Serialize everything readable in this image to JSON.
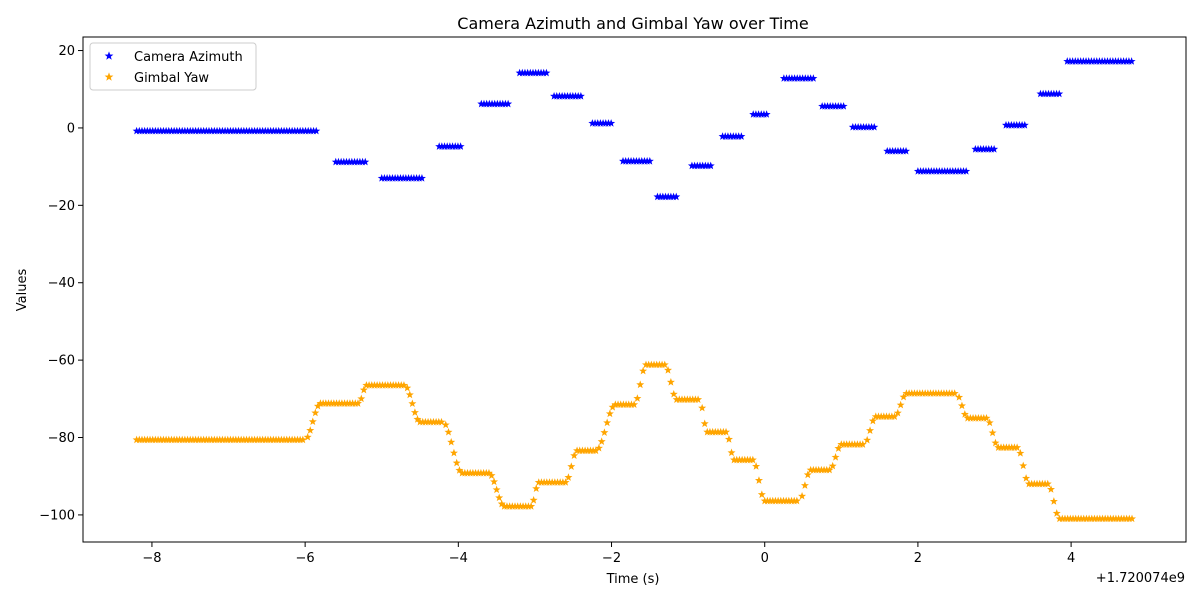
{
  "chart_data": {
    "type": "scatter",
    "title": "Camera Azimuth and Gimbal Yaw over Time",
    "xlabel": "Time (s)",
    "ylabel": "Values",
    "x_offset_label": "+1.720074e9",
    "xlim": [
      -8.9,
      5.5
    ],
    "ylim": [
      -107,
      23.5
    ],
    "x_ticks": [
      -8,
      -6,
      -4,
      -2,
      0,
      2,
      4
    ],
    "y_ticks": [
      20,
      0,
      -20,
      -40,
      -60,
      -80,
      -100
    ],
    "marker": "star",
    "legend": {
      "position": "top-left"
    },
    "series": [
      {
        "name": "Camera Azimuth",
        "color": "#0000ff",
        "segments": [
          {
            "x": [
              -8.2,
              -5.85
            ],
            "y": -0.8
          },
          {
            "x": [
              -5.6,
              -5.2
            ],
            "y": -8.8
          },
          {
            "x": [
              -5.0,
              -4.45
            ],
            "y": -13.0
          },
          {
            "x": [
              -4.25,
              -3.95
            ],
            "y": -4.8
          },
          {
            "x": [
              -3.7,
              -3.35
            ],
            "y": 6.2
          },
          {
            "x": [
              -3.2,
              -2.85
            ],
            "y": 14.2
          },
          {
            "x": [
              -2.75,
              -2.4
            ],
            "y": 8.2
          },
          {
            "x": [
              -2.25,
              -2.0
            ],
            "y": 1.2
          },
          {
            "x": [
              -1.85,
              -1.5
            ],
            "y": -8.6
          },
          {
            "x": [
              -1.4,
              -1.15
            ],
            "y": -17.8
          },
          {
            "x": [
              -0.95,
              -0.7
            ],
            "y": -9.8
          },
          {
            "x": [
              -0.55,
              -0.3
            ],
            "y": -2.2
          },
          {
            "x": [
              -0.15,
              0.05
            ],
            "y": 3.5
          },
          {
            "x": [
              0.25,
              0.65
            ],
            "y": 12.8
          },
          {
            "x": [
              0.75,
              1.05
            ],
            "y": 5.6
          },
          {
            "x": [
              1.15,
              1.45
            ],
            "y": 0.2
          },
          {
            "x": [
              1.6,
              1.85
            ],
            "y": -6.0
          },
          {
            "x": [
              2.0,
              2.65
            ],
            "y": -11.2
          },
          {
            "x": [
              2.75,
              3.0
            ],
            "y": -5.5
          },
          {
            "x": [
              3.15,
              3.4
            ],
            "y": 0.7
          },
          {
            "x": [
              3.6,
              3.85
            ],
            "y": 8.8
          },
          {
            "x": [
              3.95,
              4.8
            ],
            "y": 17.2
          }
        ]
      },
      {
        "name": "Gimbal Yaw",
        "color": "#ffa500",
        "segments": [
          {
            "x": [
              -8.2,
              -6.0
            ],
            "y": -80.6
          },
          {
            "x": [
              -5.8,
              -5.3
            ],
            "y": -71.2
          },
          {
            "x": [
              -5.2,
              -4.7
            ],
            "y": -66.5
          },
          {
            "x": [
              -4.5,
              -4.2
            ],
            "y": -76.0
          },
          {
            "x": [
              -3.95,
              -3.6
            ],
            "y": -89.2
          },
          {
            "x": [
              -3.4,
              -3.05
            ],
            "y": -97.8
          },
          {
            "x": [
              -2.95,
              -2.6
            ],
            "y": -91.6
          },
          {
            "x": [
              -2.45,
              -2.2
            ],
            "y": -83.4
          },
          {
            "x": [
              -1.95,
              -1.7
            ],
            "y": -71.5
          },
          {
            "x": [
              -1.55,
              -1.3
            ],
            "y": -61.2
          },
          {
            "x": [
              -1.15,
              -0.85
            ],
            "y": -70.2
          },
          {
            "x": [
              -0.75,
              -0.5
            ],
            "y": -78.6
          },
          {
            "x": [
              -0.4,
              -0.15
            ],
            "y": -85.8
          },
          {
            "x": [
              0.0,
              0.45
            ],
            "y": -96.4
          },
          {
            "x": [
              0.6,
              0.85
            ],
            "y": -88.4
          },
          {
            "x": [
              1.0,
              1.3
            ],
            "y": -81.8
          },
          {
            "x": [
              1.45,
              1.7
            ],
            "y": -74.6
          },
          {
            "x": [
              1.85,
              2.5
            ],
            "y": -68.6
          },
          {
            "x": [
              2.65,
              2.9
            ],
            "y": -75.0
          },
          {
            "x": [
              3.05,
              3.3
            ],
            "y": -82.6
          },
          {
            "x": [
              3.45,
              3.7
            ],
            "y": -92.0
          },
          {
            "x": [
              3.85,
              4.8
            ],
            "y": -101.0
          }
        ]
      }
    ]
  }
}
